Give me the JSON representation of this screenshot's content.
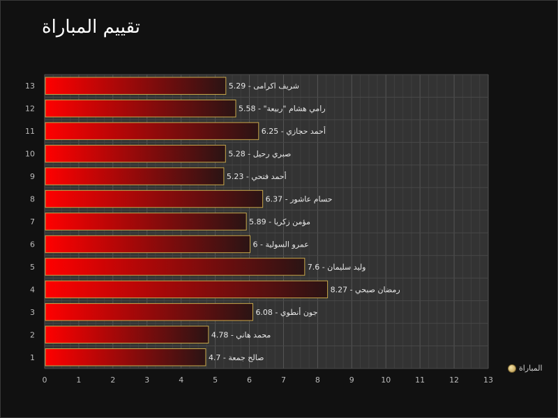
{
  "chart_data": {
    "type": "bar",
    "orientation": "horizontal",
    "title": "تقييم المباراة",
    "xlim": [
      0,
      13
    ],
    "xticks": [
      0,
      1,
      2,
      3,
      4,
      5,
      6,
      7,
      8,
      9,
      10,
      11,
      12,
      13
    ],
    "categories": [
      "1",
      "2",
      "3",
      "4",
      "5",
      "6",
      "7",
      "8",
      "9",
      "10",
      "11",
      "12",
      "13"
    ],
    "series": [
      {
        "name": "المباراة",
        "values": [
          4.7,
          4.78,
          6.08,
          8.27,
          7.6,
          6,
          5.89,
          6.37,
          5.23,
          5.28,
          6.25,
          5.58,
          5.29
        ],
        "labels": [
          "صالح جمعة - 4.7",
          "محمد هاني - 4.78",
          "جون أنطوي - 6.08",
          "رمضان صبحي - 8.27",
          "وليد سليمان - 7.6",
          "عمرو السولية - 6",
          "مؤمن زكريا - 5.89",
          "حسام عاشور - 6.37",
          "أحمد فتحي - 5.23",
          "صبري رحيل - 5.28",
          "أحمد حجازي - 6.25",
          "رامي هشام \"ربيعة\" - 5.58",
          "شريف اكرامى - 5.29"
        ]
      }
    ],
    "grid": true,
    "legend_position": "bottom-right",
    "colors": {
      "bar_start": "#ff0000",
      "bar_end": "#2a1414",
      "bar_border": "#c8a84b",
      "plot_bg": "#333333",
      "grid": "#4a4a4a",
      "legend_marker": "#d9c07a"
    }
  }
}
